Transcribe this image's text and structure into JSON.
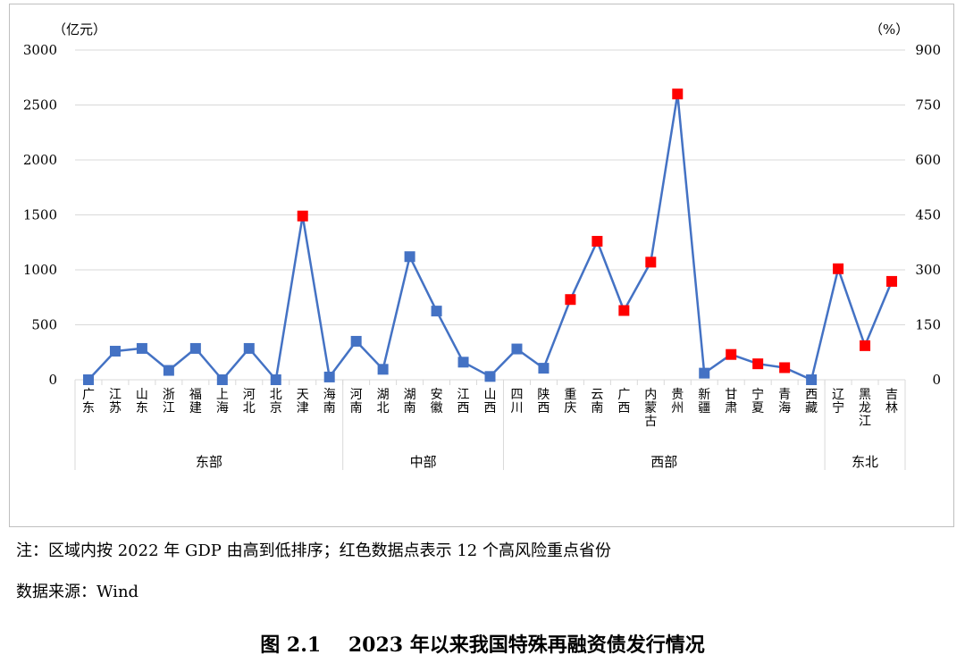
{
  "chart_data": {
    "type": "line",
    "y_left_unit": "（亿元）",
    "y_right_unit": "（%）",
    "ylim": [
      0,
      3000
    ],
    "y_ticks": [
      0,
      500,
      1000,
      1500,
      2000,
      2500,
      3000
    ],
    "ylim_right": [
      0,
      900
    ],
    "y_right_ticks": [
      0,
      150,
      300,
      450,
      600,
      750,
      900
    ],
    "categories": [
      "广东",
      "江苏",
      "山东",
      "浙江",
      "福建",
      "上海",
      "河北",
      "北京",
      "天津",
      "海南",
      "河南",
      "湖北",
      "湖南",
      "安徽",
      "江西",
      "山西",
      "四川",
      "陕西",
      "重庆",
      "云南",
      "广西",
      "内蒙古",
      "贵州",
      "新疆",
      "甘肃",
      "宁夏",
      "青海",
      "西藏",
      "辽宁",
      "黑龙江",
      "吉林"
    ],
    "values": [
      0,
      260,
      285,
      85,
      285,
      0,
      285,
      0,
      1490,
      25,
      350,
      95,
      1120,
      625,
      160,
      30,
      280,
      105,
      730,
      1260,
      630,
      1070,
      2600,
      60,
      230,
      145,
      110,
      0,
      1010,
      310,
      895
    ],
    "high_risk": [
      false,
      false,
      false,
      false,
      false,
      false,
      false,
      false,
      true,
      false,
      false,
      false,
      false,
      false,
      false,
      false,
      false,
      false,
      true,
      true,
      true,
      true,
      true,
      false,
      true,
      true,
      true,
      false,
      true,
      true,
      true
    ],
    "groups": [
      {
        "name": "东部",
        "start": 0,
        "end": 9
      },
      {
        "name": "中部",
        "start": 10,
        "end": 15
      },
      {
        "name": "西部",
        "start": 16,
        "end": 27
      },
      {
        "name": "东北",
        "start": 28,
        "end": 30
      }
    ],
    "colors": {
      "line": "#4472C4",
      "normal_marker": "#4472C4",
      "risk_marker": "#FF0000",
      "grid": "#d9d9d9"
    }
  },
  "notes": {
    "note1": "注：区域内按 2022 年 GDP 由高到低排序；红色数据点表示 12 个高风险重点省份",
    "note2": "数据来源：Wind"
  },
  "figure": {
    "label": "图 2.1",
    "title": "2023 年以来我国特殊再融资债发行情况"
  }
}
